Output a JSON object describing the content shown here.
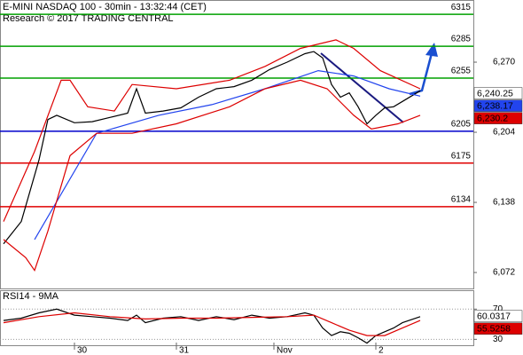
{
  "chart_data": [
    {
      "type": "line",
      "title": "E-MINI NASDAQ 100 - 30min - 13:32:44 (CET)",
      "subtitle": "Research © 2017 TRADING CENTRAL",
      "xlim": [
        -0.8,
        106
      ],
      "ylim": [
        6057,
        6328.5
      ],
      "yticks": [
        {
          "value": 6270,
          "label": "6,270"
        },
        {
          "value": 6204,
          "label": "6,204"
        },
        {
          "value": 6138,
          "label": "6,138"
        },
        {
          "value": 6072,
          "label": "6,072"
        }
      ],
      "hlines": [
        {
          "value": 6315,
          "color": "#00a000"
        },
        {
          "value": 6285,
          "color": "#00a000"
        },
        {
          "value": 6255,
          "color": "#00a000"
        },
        {
          "value": 6205,
          "color": "#0000cc"
        },
        {
          "value": 6175,
          "color": "#e00000"
        },
        {
          "value": 6134,
          "color": "#e00000"
        }
      ],
      "series": [
        {
          "color": "#000000",
          "x": [
            0,
            4,
            8,
            10,
            12,
            16,
            20,
            24,
            28,
            30,
            32,
            36,
            40,
            44,
            48,
            52,
            56,
            60,
            64,
            68,
            70,
            72,
            74,
            76,
            78,
            80,
            82,
            84,
            86,
            88,
            90,
            92,
            94
          ],
          "values": [
            6099,
            6120,
            6178,
            6216,
            6220,
            6213,
            6214,
            6218,
            6222,
            6245,
            6222,
            6224,
            6227,
            6237,
            6245,
            6247,
            6253,
            6263,
            6270,
            6278,
            6280,
            6274,
            6249,
            6237,
            6241,
            6228,
            6212,
            6220,
            6227,
            6228,
            6233,
            6238,
            6243
          ]
        },
        {
          "color": "#2244ee",
          "x": [
            7,
            21,
            35,
            47,
            59,
            71,
            79,
            87,
            94
          ],
          "values": [
            6103,
            6203,
            6220,
            6230,
            6245,
            6262,
            6257,
            6245,
            6238
          ]
        },
        {
          "color": "#dd0000",
          "x": [
            0,
            7,
            13,
            15,
            19,
            25,
            29,
            39,
            51,
            59,
            67,
            75,
            79,
            85,
            94
          ],
          "values": [
            6120,
            6186,
            6253,
            6253,
            6228,
            6224,
            6249,
            6245,
            6253,
            6266,
            6283,
            6291,
            6283,
            6262,
            6245
          ]
        },
        {
          "color": "#dd0000",
          "x": [
            0,
            5,
            7,
            10,
            15,
            21,
            29,
            39,
            51,
            59,
            67,
            73,
            79,
            83,
            89,
            94
          ],
          "values": [
            6103,
            6086,
            6074,
            6111,
            6182,
            6203,
            6203,
            6212,
            6228,
            6245,
            6253,
            6245,
            6220,
            6207,
            6212,
            6220
          ]
        }
      ],
      "price_labels": [
        {
          "value": 6240.25,
          "label": "6,240.25",
          "color": "#ffffff",
          "text_color": "#000000"
        },
        {
          "value": 6238.17,
          "label": "6,238.17",
          "color": "#2244ee",
          "text_color": "#ffffff"
        },
        {
          "value": 6230.2,
          "label": "6,230.2",
          "color": "#dd0000",
          "text_color": "#ffffff"
        }
      ]
    },
    {
      "type": "line",
      "title": "RSI14 - 9MA",
      "xlim": [
        -0.8,
        106
      ],
      "ylim": [
        21,
        95
      ],
      "yticks": [
        70,
        30
      ],
      "xticks": [
        {
          "value": 16,
          "label": "30"
        },
        {
          "value": 39,
          "label": "31"
        },
        {
          "value": 61,
          "label": "Nov"
        },
        {
          "value": 84,
          "label": "2"
        }
      ],
      "series": [
        {
          "color": "#000000",
          "x": [
            0,
            4,
            8,
            12,
            16,
            20,
            24,
            28,
            30,
            32,
            36,
            40,
            44,
            48,
            52,
            56,
            60,
            64,
            68,
            70,
            72,
            74,
            76,
            78,
            80,
            82,
            84,
            86,
            88,
            90,
            92,
            94
          ],
          "values": [
            55,
            58,
            65,
            70,
            62,
            60,
            58,
            55,
            62,
            52,
            58,
            60,
            55,
            60,
            56,
            62,
            58,
            60,
            65,
            62,
            45,
            35,
            40,
            38,
            32,
            25,
            35,
            40,
            45,
            52,
            56,
            60
          ]
        },
        {
          "color": "#dd0000",
          "x": [
            0,
            8,
            16,
            24,
            32,
            40,
            48,
            56,
            64,
            70,
            74,
            78,
            82,
            86,
            90,
            94
          ],
          "values": [
            52,
            60,
            65,
            60,
            57,
            58,
            58,
            59,
            60,
            62,
            52,
            42,
            35,
            35,
            45,
            55
          ]
        }
      ],
      "price_labels": [
        {
          "value": 60.0317,
          "label": "60.0317",
          "color": "#ffffff",
          "text_color": "#000000"
        },
        {
          "value": 55.5258,
          "label": "55.5258",
          "color": "#dd0000",
          "text_color": "#ffffff"
        }
      ]
    }
  ]
}
